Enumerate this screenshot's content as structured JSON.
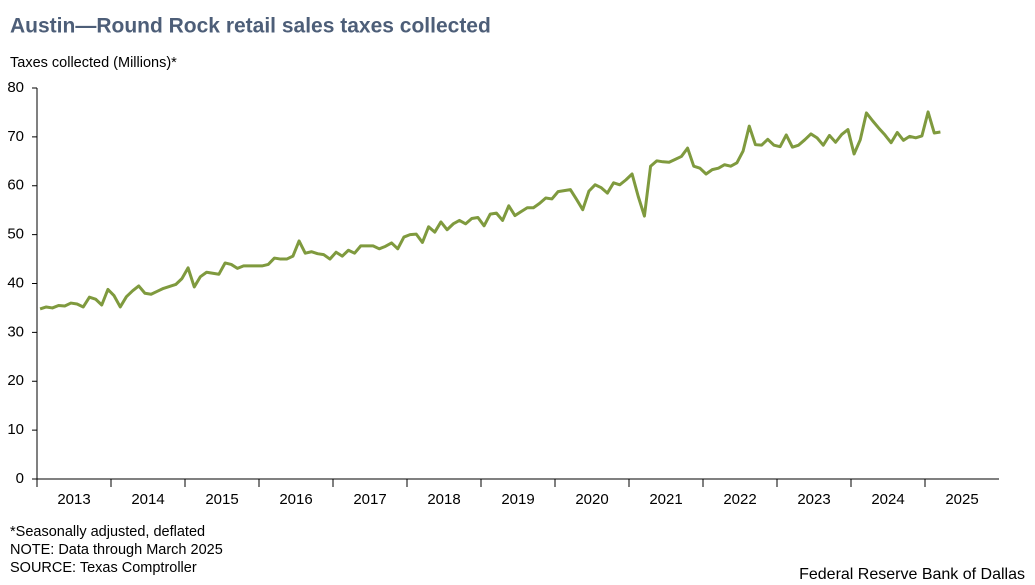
{
  "chart_data": {
    "type": "line",
    "title": "Austin—Round Rock retail sales taxes collected",
    "y_label": "Taxes  collected  (Millions)*",
    "notes": [
      "*Seasonally adjusted, deflated",
      "NOTE: Data through March 2025",
      "SOURCE: Texas Comptroller"
    ],
    "credit": "Federal Reserve Bank of Dallas",
    "categories": [
      "2013",
      null,
      null,
      null,
      null,
      null,
      null,
      null,
      null,
      null,
      null,
      null,
      "2014",
      null,
      null,
      null,
      null,
      null,
      null,
      null,
      null,
      null,
      null,
      null,
      "2015",
      null,
      null,
      null,
      null,
      null,
      null,
      null,
      null,
      null,
      null,
      null,
      "2016",
      null,
      null,
      null,
      null,
      null,
      null,
      null,
      null,
      null,
      null,
      null,
      "2017",
      null,
      null,
      null,
      null,
      null,
      null,
      null,
      null,
      null,
      null,
      null,
      "2018",
      null,
      null,
      null,
      null,
      null,
      null,
      null,
      null,
      null,
      null,
      null,
      "2019",
      null,
      null,
      null,
      null,
      null,
      null,
      null,
      null,
      null,
      null,
      null,
      "2020",
      null,
      null,
      null,
      null,
      null,
      null,
      null,
      null,
      null,
      null,
      null,
      "2021",
      null,
      null,
      null,
      null,
      null,
      null,
      null,
      null,
      null,
      null,
      null,
      "2022",
      null,
      null,
      null,
      null,
      null,
      null,
      null,
      null,
      null,
      null,
      null,
      "2023",
      null,
      null,
      null,
      null,
      null,
      null,
      null,
      null,
      null,
      null,
      null,
      "2024",
      null,
      null,
      null,
      null,
      null,
      null,
      null,
      null,
      null,
      null,
      null,
      "2025",
      null,
      null,
      null,
      null,
      null,
      null,
      null,
      null,
      null,
      null,
      null
    ],
    "series": [
      {
        "name": "Taxes collected",
        "color": "#7f9a3e",
        "values": [
          34.8,
          35.2,
          35.0,
          35.5,
          35.4,
          36.0,
          35.8,
          35.2,
          37.2,
          36.8,
          35.6,
          38.8,
          37.5,
          35.2,
          37.3,
          38.5,
          39.5,
          38.0,
          37.8,
          38.4,
          39.0,
          39.4,
          39.8,
          41.0,
          43.2,
          39.3,
          41.4,
          42.3,
          42.1,
          41.9,
          44.2,
          43.9,
          43.1,
          43.6,
          43.6,
          43.6,
          43.6,
          43.9,
          45.2,
          45.0,
          45.0,
          45.6,
          48.7,
          46.2,
          46.5,
          46.1,
          45.9,
          45.0,
          46.4,
          45.6,
          46.8,
          46.2,
          47.7,
          47.7,
          47.7,
          47.1,
          47.6,
          48.3,
          47.1,
          49.5,
          50.0,
          50.1,
          48.4,
          51.6,
          50.5,
          52.6,
          51.0,
          52.2,
          52.9,
          52.2,
          53.3,
          53.5,
          51.8,
          54.2,
          54.4,
          52.9,
          55.9,
          53.9,
          54.7,
          55.5,
          55.5,
          56.4,
          57.5,
          57.3,
          58.8,
          59.0,
          59.2,
          57.2,
          55.1,
          58.9,
          60.2,
          59.6,
          58.5,
          60.6,
          60.2,
          61.2,
          62.4,
          57.8,
          53.8,
          64.0,
          65.1,
          64.9,
          64.8,
          65.4,
          66.0,
          67.7,
          64.0,
          63.6,
          62.4,
          63.3,
          63.6,
          64.3,
          64.0,
          64.7,
          67.1,
          72.2,
          68.4,
          68.3,
          69.5,
          68.3,
          68.0,
          70.4,
          67.9,
          68.3,
          69.4,
          70.6,
          69.8,
          68.3,
          70.3,
          68.9,
          70.5,
          71.5,
          66.5,
          69.4,
          74.9,
          73.3,
          71.8,
          70.4,
          68.8,
          70.9,
          69.3,
          70.1,
          69.8,
          70.2,
          75.1,
          70.8,
          71.0,
          null,
          null,
          null,
          null,
          null,
          null,
          null,
          null,
          null
        ]
      }
    ],
    "ylim": [
      0,
      80
    ],
    "yticks": [
      0,
      10,
      20,
      30,
      40,
      50,
      60,
      70,
      80
    ],
    "grid": false
  }
}
